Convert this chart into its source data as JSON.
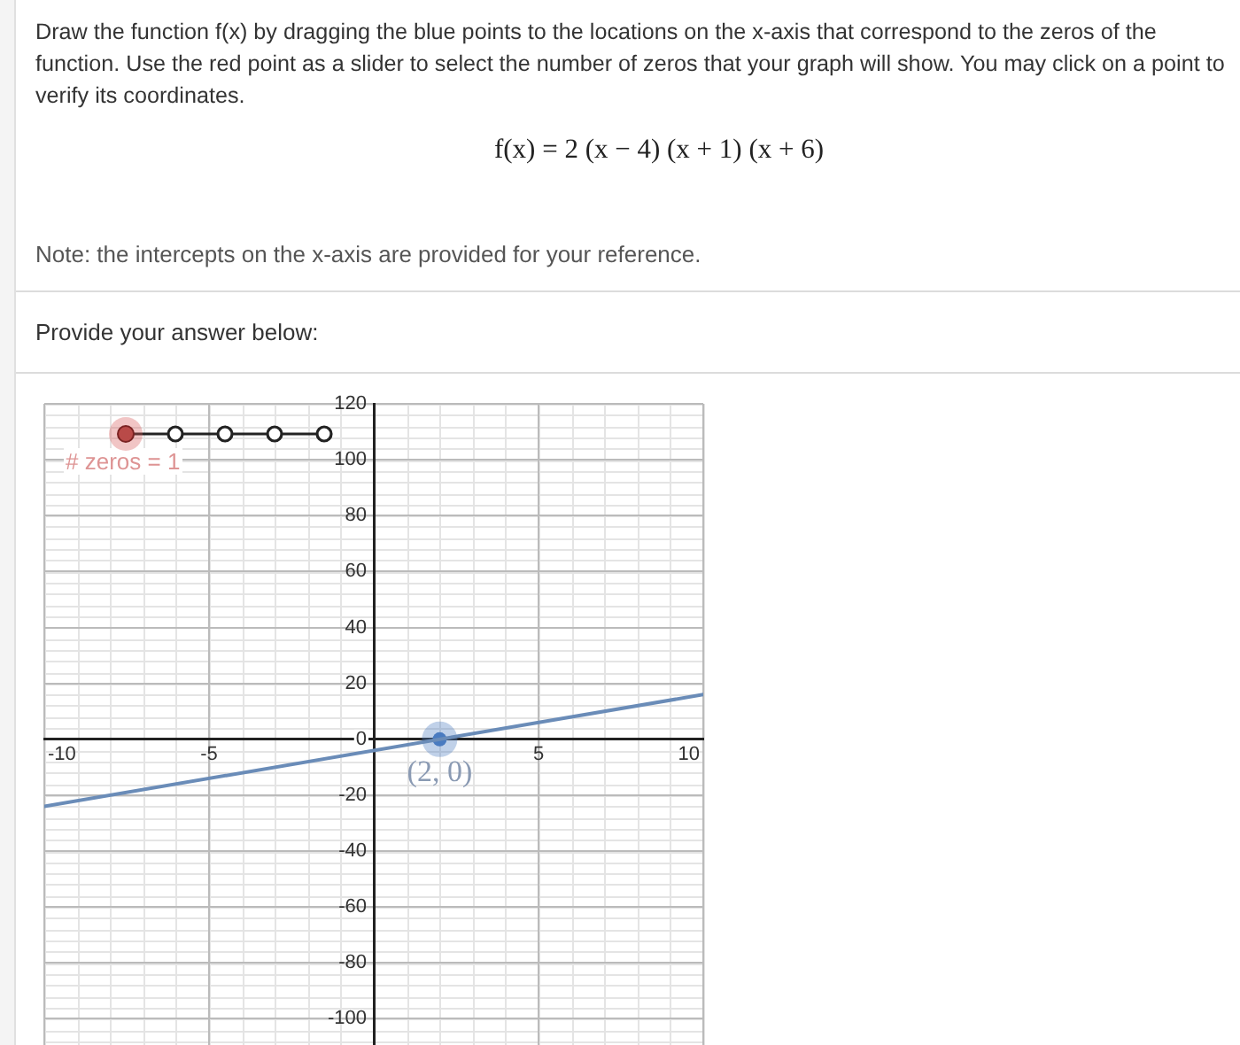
{
  "chart_data": {
    "type": "line",
    "title": "Draw the function f(x) by dragging the blue points to the locations on the x-axis that correspond to the zeros of the function. Use the red point as a slider to select the number of zeros that your graph will show. You may click on a point to verify its coordinates.",
    "subtitle": "f(x) = 2 (x − 4) (x + 1) (x + 6)",
    "annotations": [
      "Note: the intercepts on the x-axis are provided for your reference.",
      "Provide your answer below:",
      "# zeros = 1",
      {
        "text": "(2, 0)",
        "x": 2,
        "y": 0
      }
    ],
    "series": [
      {
        "type": "line",
        "x": [
          -10,
          10
        ],
        "values": [
          -24,
          16
        ],
        "color": "#6a8cb8",
        "marker": "none"
      },
      {
        "type": "scatter",
        "x": [
          2
        ],
        "values": [
          0
        ],
        "color": "#4a7cc0",
        "marker": "circle"
      }
    ],
    "xlim": [
      -10,
      10
    ],
    "ylim": [
      -110,
      120
    ],
    "xticks": [
      -10,
      -5,
      5,
      10
    ],
    "yticks": [
      -100,
      -80,
      -60,
      -40,
      -20,
      0,
      20,
      40,
      60,
      80,
      100,
      120
    ],
    "grid": true,
    "legend": false
  }
}
